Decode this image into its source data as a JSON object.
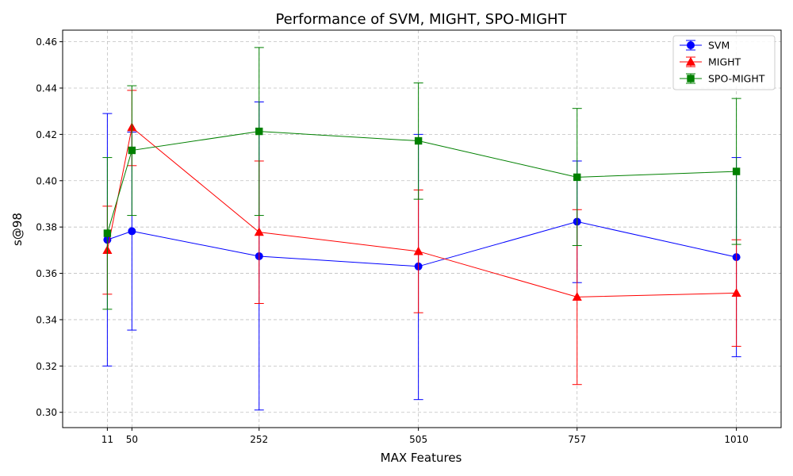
{
  "chart_data": {
    "type": "line",
    "title": "Performance of SVM, MIGHT, SPO-MIGHT",
    "xlabel": "MAX Features",
    "ylabel": "s@98",
    "x": [
      11,
      50,
      252,
      505,
      757,
      1010
    ],
    "xlim": [
      -60,
      1081
    ],
    "ylim": [
      0.2934,
      0.465
    ],
    "yticks": [
      0.3,
      0.32,
      0.34,
      0.36,
      0.38,
      0.4,
      0.42,
      0.44,
      0.46
    ],
    "grid": true,
    "legend_position": "top-right",
    "series": [
      {
        "name": "SVM",
        "color": "#0000ff",
        "marker": "circle",
        "values": [
          0.3745,
          0.3782,
          0.3674,
          0.363,
          0.3823,
          0.367
        ],
        "err_low": [
          0.32,
          0.3355,
          0.301,
          0.3055,
          0.356,
          0.324
        ],
        "err_high": [
          0.429,
          0.421,
          0.434,
          0.42,
          0.4085,
          0.41
        ]
      },
      {
        "name": "MIGHT",
        "color": "#ff0000",
        "marker": "triangle",
        "values": [
          0.37,
          0.423,
          0.3778,
          0.3695,
          0.3498,
          0.3515
        ],
        "err_low": [
          0.351,
          0.4065,
          0.347,
          0.343,
          0.312,
          0.3285
        ],
        "err_high": [
          0.389,
          0.439,
          0.4085,
          0.396,
          0.3875,
          0.3745
        ]
      },
      {
        "name": "SPO-MIGHT",
        "color": "#008000",
        "marker": "square",
        "values": [
          0.3773,
          0.4131,
          0.4213,
          0.4172,
          0.4015,
          0.404
        ],
        "err_low": [
          0.3445,
          0.385,
          0.385,
          0.392,
          0.372,
          0.3725
        ],
        "err_high": [
          0.41,
          0.441,
          0.4575,
          0.4422,
          0.4312,
          0.4355
        ]
      }
    ]
  }
}
